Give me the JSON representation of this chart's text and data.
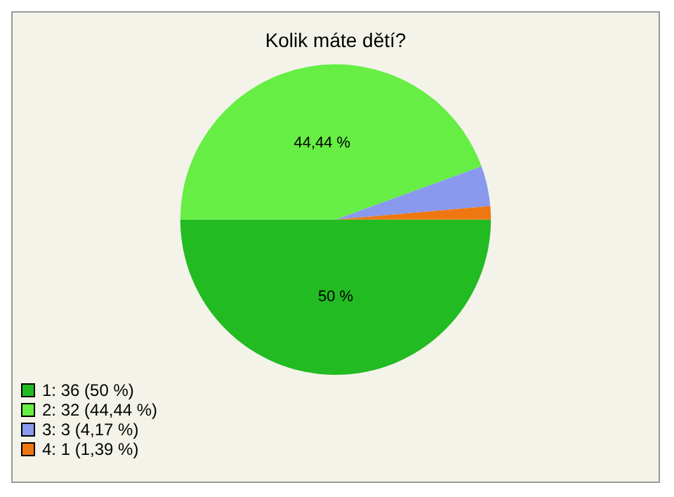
{
  "chart_data": {
    "type": "pie",
    "title": "Kolik máte dětí?",
    "categories": [
      "1: 36 (50 %)",
      "2: 32 (44,44 %)",
      "3: 3 (4,17 %)",
      "4: 1 (1,39 %)"
    ],
    "values": [
      50,
      44.44,
      4.17,
      1.39
    ],
    "colors": [
      "#22bb22",
      "#66ee44",
      "#8899ee",
      "#ee7711"
    ],
    "value_labels": [
      "50 %",
      "44,44 %",
      null,
      null
    ],
    "legend": "bottom left"
  }
}
